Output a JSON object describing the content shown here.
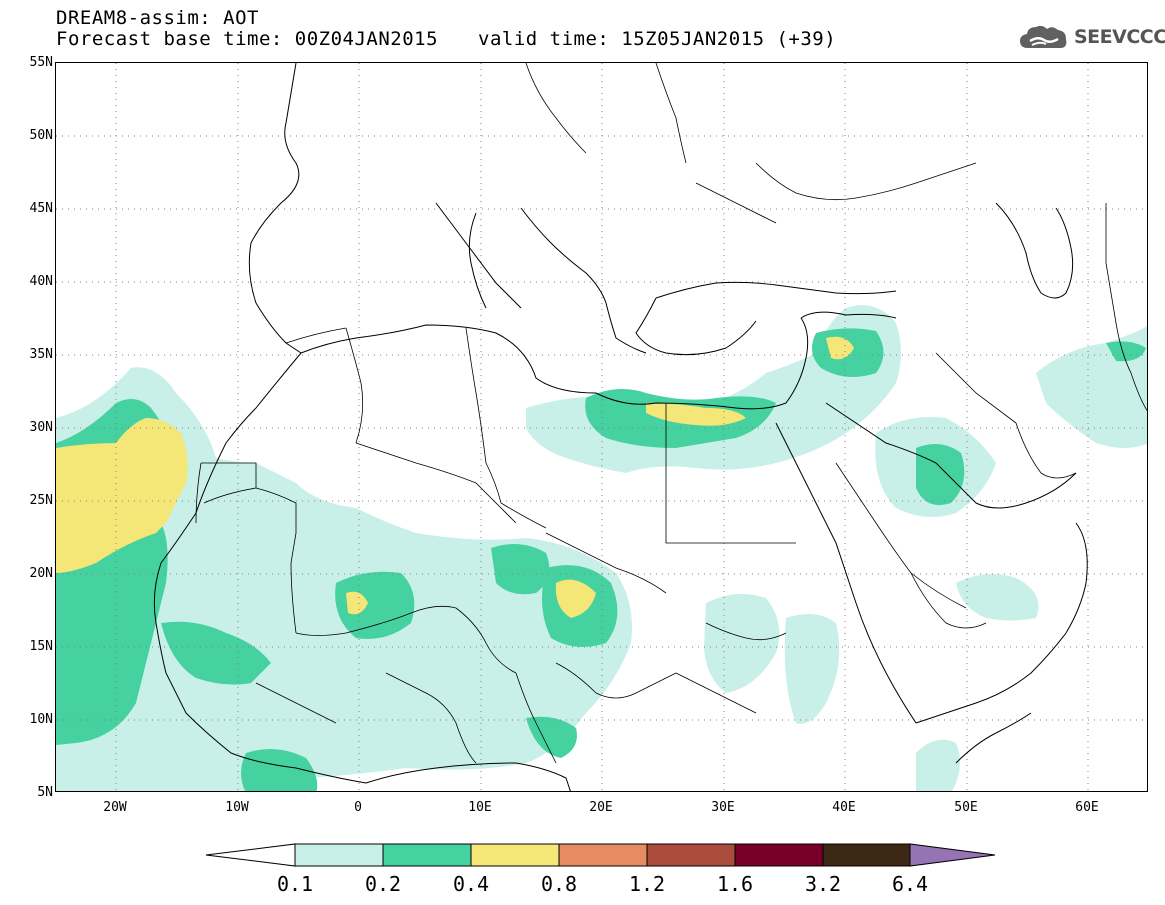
{
  "header": {
    "title": "DREAM8-assim: AOT",
    "base_time": "Forecast base time: 00Z04JAN2015",
    "valid_time": "valid time: 15Z05JAN2015 (+39)"
  },
  "logo": {
    "text": "SEEVCCC",
    "icon": "cloud-icon"
  },
  "map": {
    "lat_labels": [
      "55N",
      "50N",
      "45N",
      "40N",
      "35N",
      "30N",
      "25N",
      "20N",
      "15N",
      "10N",
      "5N"
    ],
    "lon_labels": [
      "20W",
      "10W",
      "0",
      "10E",
      "20E",
      "30E",
      "40E",
      "50E",
      "60E"
    ],
    "lon_range": [
      -25,
      65
    ],
    "lat_range": [
      5,
      55
    ],
    "grid": "dotted"
  },
  "colorbar": {
    "levels": [
      "0.1",
      "0.2",
      "0.4",
      "0.8",
      "1.2",
      "1.6",
      "3.2",
      "6.4"
    ],
    "colors": [
      "#ffffff",
      "#c8f0e8",
      "#46d2a0",
      "#f5e678",
      "#e68c64",
      "#aa4b3c",
      "#780028",
      "#3c2814",
      "#9673b4"
    ]
  }
}
